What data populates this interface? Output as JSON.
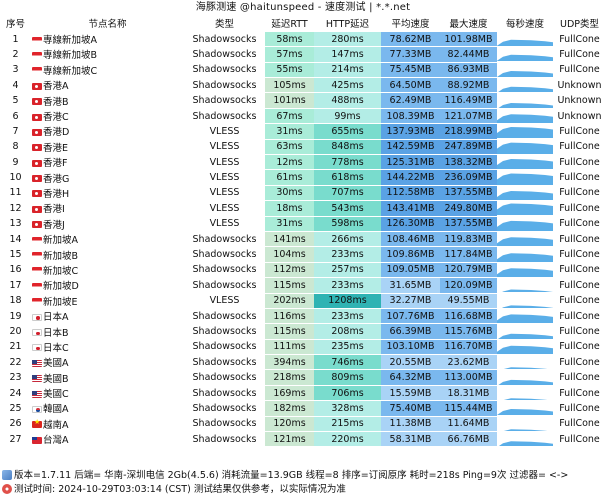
{
  "window": {
    "title": "海豚测速 @haitunspeed - 速度测试 | *.*.net"
  },
  "columns": [
    "序号",
    "节点名称",
    "类型",
    "延迟RTT",
    "HTTP延迟",
    "平均速度",
    "最大速度",
    "每秒速度",
    "UDP类型"
  ],
  "colors": {
    "rtt_good": "#a9ecd8",
    "rtt_mid": "#cbe8d2",
    "http_good": "#b3ede6",
    "http_mid": "#79dccd",
    "http_bad": "#2fb3b3",
    "avg_high": "#5aa2e4",
    "avg_mid": "#7ab8ee",
    "avg_low": "#a9d3f6",
    "max_high": "#5aa2e4",
    "max_mid": "#7ab8ee",
    "max_low": "#a9d3f6",
    "spark": "#5aaee8"
  },
  "rows": [
    {
      "no": "1",
      "flag": "sg",
      "name": "専線新加坡A",
      "type": "Shadowsocks",
      "rtt": "58ms",
      "http": "280ms",
      "avg": "78.62MB",
      "max": "101.98MB",
      "udp": "FullCone"
    },
    {
      "no": "2",
      "flag": "sg",
      "name": "専線新加坡B",
      "type": "Shadowsocks",
      "rtt": "57ms",
      "http": "147ms",
      "avg": "77.33MB",
      "max": "82.44MB",
      "udp": "FullCone"
    },
    {
      "no": "3",
      "flag": "sg",
      "name": "専線新加坡C",
      "type": "Shadowsocks",
      "rtt": "55ms",
      "http": "214ms",
      "avg": "75.45MB",
      "max": "86.93MB",
      "udp": "FullCone"
    },
    {
      "no": "4",
      "flag": "hk",
      "name": "香港A",
      "type": "Shadowsocks",
      "rtt": "105ms",
      "http": "425ms",
      "avg": "64.50MB",
      "max": "88.92MB",
      "udp": "Unknown"
    },
    {
      "no": "5",
      "flag": "hk",
      "name": "香港B",
      "type": "Shadowsocks",
      "rtt": "101ms",
      "http": "488ms",
      "avg": "62.49MB",
      "max": "116.49MB",
      "udp": "Unknown"
    },
    {
      "no": "6",
      "flag": "hk",
      "name": "香港C",
      "type": "Shadowsocks",
      "rtt": "67ms",
      "http": "99ms",
      "avg": "108.39MB",
      "max": "121.07MB",
      "udp": "Unknown"
    },
    {
      "no": "7",
      "flag": "hk",
      "name": "香港D",
      "type": "VLESS",
      "rtt": "31ms",
      "http": "655ms",
      "avg": "137.93MB",
      "max": "218.99MB",
      "udp": "FullCone"
    },
    {
      "no": "8",
      "flag": "hk",
      "name": "香港E",
      "type": "VLESS",
      "rtt": "63ms",
      "http": "848ms",
      "avg": "142.59MB",
      "max": "247.89MB",
      "udp": "FullCone"
    },
    {
      "no": "9",
      "flag": "hk",
      "name": "香港F",
      "type": "VLESS",
      "rtt": "12ms",
      "http": "778ms",
      "avg": "125.31MB",
      "max": "138.32MB",
      "udp": "FullCone"
    },
    {
      "no": "10",
      "flag": "hk",
      "name": "香港G",
      "type": "VLESS",
      "rtt": "61ms",
      "http": "618ms",
      "avg": "144.22MB",
      "max": "236.09MB",
      "udp": "FullCone"
    },
    {
      "no": "11",
      "flag": "hk",
      "name": "香港H",
      "type": "VLESS",
      "rtt": "30ms",
      "http": "707ms",
      "avg": "112.58MB",
      "max": "137.55MB",
      "udp": "FullCone"
    },
    {
      "no": "12",
      "flag": "hk",
      "name": "香港I",
      "type": "VLESS",
      "rtt": "18ms",
      "http": "543ms",
      "avg": "143.41MB",
      "max": "249.80MB",
      "udp": "FullCone"
    },
    {
      "no": "13",
      "flag": "hk",
      "name": "香港J",
      "type": "VLESS",
      "rtt": "31ms",
      "http": "598ms",
      "avg": "126.30MB",
      "max": "137.55MB",
      "udp": "FullCone"
    },
    {
      "no": "14",
      "flag": "sg",
      "name": "新加坡A",
      "type": "Shadowsocks",
      "rtt": "141ms",
      "http": "266ms",
      "avg": "108.46MB",
      "max": "119.83MB",
      "udp": "FullCone"
    },
    {
      "no": "15",
      "flag": "sg",
      "name": "新加坡B",
      "type": "Shadowsocks",
      "rtt": "104ms",
      "http": "233ms",
      "avg": "109.86MB",
      "max": "117.84MB",
      "udp": "FullCone"
    },
    {
      "no": "16",
      "flag": "sg",
      "name": "新加坡C",
      "type": "Shadowsocks",
      "rtt": "112ms",
      "http": "257ms",
      "avg": "109.05MB",
      "max": "120.79MB",
      "udp": "FullCone"
    },
    {
      "no": "17",
      "flag": "sg",
      "name": "新加坡D",
      "type": "Shadowsocks",
      "rtt": "115ms",
      "http": "233ms",
      "avg": "31.65MB",
      "max": "120.09MB",
      "udp": "FullCone"
    },
    {
      "no": "18",
      "flag": "sg",
      "name": "新加坡E",
      "type": "VLESS",
      "rtt": "202ms",
      "http": "1208ms",
      "avg": "32.27MB",
      "max": "49.55MB",
      "udp": "FullCone"
    },
    {
      "no": "19",
      "flag": "jp",
      "name": "日本A",
      "type": "Shadowsocks",
      "rtt": "116ms",
      "http": "233ms",
      "avg": "107.76MB",
      "max": "116.68MB",
      "udp": "FullCone"
    },
    {
      "no": "20",
      "flag": "jp",
      "name": "日本B",
      "type": "Shadowsocks",
      "rtt": "115ms",
      "http": "208ms",
      "avg": "66.39MB",
      "max": "115.76MB",
      "udp": "FullCone"
    },
    {
      "no": "21",
      "flag": "jp",
      "name": "日本C",
      "type": "Shadowsocks",
      "rtt": "111ms",
      "http": "235ms",
      "avg": "103.10MB",
      "max": "116.70MB",
      "udp": "FullCone"
    },
    {
      "no": "22",
      "flag": "us",
      "name": "美國A",
      "type": "Shadowsocks",
      "rtt": "394ms",
      "http": "746ms",
      "avg": "20.55MB",
      "max": "23.62MB",
      "udp": "FullCone"
    },
    {
      "no": "23",
      "flag": "us",
      "name": "美國B",
      "type": "Shadowsocks",
      "rtt": "218ms",
      "http": "809ms",
      "avg": "64.32MB",
      "max": "113.00MB",
      "udp": "FullCone"
    },
    {
      "no": "24",
      "flag": "us",
      "name": "美國C",
      "type": "Shadowsocks",
      "rtt": "169ms",
      "http": "706ms",
      "avg": "15.59MB",
      "max": "18.31MB",
      "udp": "FullCone"
    },
    {
      "no": "25",
      "flag": "kr",
      "name": "韓國A",
      "type": "Shadowsocks",
      "rtt": "182ms",
      "http": "328ms",
      "avg": "75.40MB",
      "max": "115.44MB",
      "udp": "FullCone"
    },
    {
      "no": "26",
      "flag": "vn",
      "name": "越南A",
      "type": "Shadowsocks",
      "rtt": "120ms",
      "http": "215ms",
      "avg": "11.38MB",
      "max": "11.64MB",
      "udp": "FullCone"
    },
    {
      "no": "27",
      "flag": "tw",
      "name": "台灣A",
      "type": "Shadowsocks",
      "rtt": "121ms",
      "http": "220ms",
      "avg": "58.31MB",
      "max": "66.76MB",
      "udp": "FullCone"
    }
  ],
  "footer": {
    "line1": "版本=1.7.11  后端=     华南-深圳电信 2Gb(4.5.6) 消耗流量=13.9GB  线程=8  排序=订阅原序  耗时=218s  Ping=9次  过滤器= <->",
    "line2": "测试时间: 2024-10-29T03:03:14 (CST)  测试结果仅供参考，以实际情况为准"
  }
}
